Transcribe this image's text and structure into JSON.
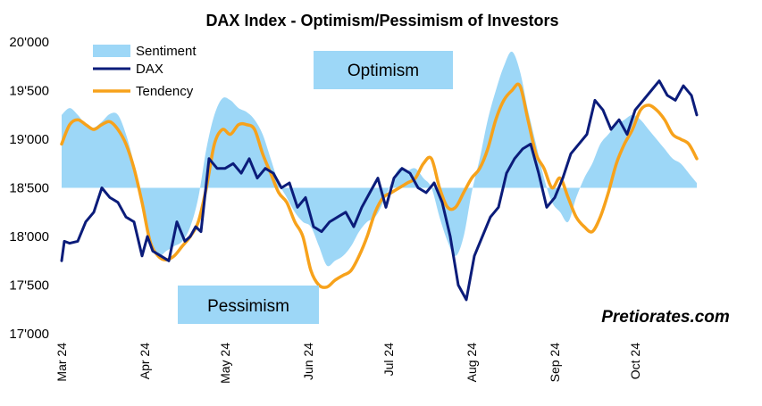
{
  "chart_data": {
    "type": "line",
    "title": "DAX Index - Optimism/Pessimism of Investors",
    "ylim": [
      17000,
      20000
    ],
    "y_ticks": [
      {
        "value": 20000,
        "label": "20'000"
      },
      {
        "value": 19500,
        "label": "19'500"
      },
      {
        "value": 19000,
        "label": "19'000"
      },
      {
        "value": 18500,
        "label": "18'500"
      },
      {
        "value": 18000,
        "label": "18'000"
      },
      {
        "value": 17500,
        "label": "17'500"
      },
      {
        "value": 17000,
        "label": "17'000"
      }
    ],
    "x_ticks": [
      {
        "date": "2024-03-01",
        "label": "Mar 24"
      },
      {
        "date": "2024-04-01",
        "label": "Apr 24"
      },
      {
        "date": "2024-05-01",
        "label": "May 24"
      },
      {
        "date": "2024-06-01",
        "label": "Jun 24"
      },
      {
        "date": "2024-07-01",
        "label": "Jul 24"
      },
      {
        "date": "2024-08-01",
        "label": "Aug 24"
      },
      {
        "date": "2024-09-01",
        "label": "Sep 24"
      },
      {
        "date": "2024-10-01",
        "label": "Oct 24"
      }
    ],
    "xlim": [
      "2024-03-01",
      "2024-10-24"
    ],
    "baseline": 18500,
    "legend": {
      "placement": "top-left",
      "entries": [
        "Sentiment",
        "DAX",
        "Tendency"
      ]
    },
    "annotations": {
      "optimism": "Optimism",
      "pessimism": "Pessimism"
    },
    "watermark": "Pretiorates.com",
    "colors": {
      "sentiment": "#9dd7f7",
      "dax": "#0b1c7a",
      "tendency": "#f7a21b"
    },
    "series": [
      {
        "name": "Sentiment",
        "style": "area",
        "x": [
          "2024-03-01",
          "2024-03-04",
          "2024-03-07",
          "2024-03-10",
          "2024-03-13",
          "2024-03-16",
          "2024-03-19",
          "2024-03-22",
          "2024-03-25",
          "2024-03-28",
          "2024-03-31",
          "2024-04-03",
          "2024-04-06",
          "2024-04-09",
          "2024-04-12",
          "2024-04-15",
          "2024-04-18",
          "2024-04-21",
          "2024-04-24",
          "2024-04-27",
          "2024-04-30",
          "2024-05-03",
          "2024-05-06",
          "2024-05-09",
          "2024-05-12",
          "2024-05-15",
          "2024-05-18",
          "2024-05-21",
          "2024-05-24",
          "2024-05-27",
          "2024-05-30",
          "2024-06-02",
          "2024-06-05",
          "2024-06-08",
          "2024-06-11",
          "2024-06-14",
          "2024-06-17",
          "2024-06-20",
          "2024-06-23",
          "2024-06-26",
          "2024-06-29",
          "2024-07-02",
          "2024-07-05",
          "2024-07-08",
          "2024-07-11",
          "2024-07-14",
          "2024-07-17",
          "2024-07-20",
          "2024-07-23",
          "2024-07-26",
          "2024-07-29",
          "2024-08-01",
          "2024-08-04",
          "2024-08-07",
          "2024-08-10",
          "2024-08-13",
          "2024-08-16",
          "2024-08-19",
          "2024-08-22",
          "2024-08-25",
          "2024-08-28",
          "2024-08-31",
          "2024-09-03",
          "2024-09-06",
          "2024-09-09",
          "2024-09-12",
          "2024-09-15",
          "2024-09-18",
          "2024-09-21",
          "2024-09-24",
          "2024-09-27",
          "2024-09-30",
          "2024-10-03",
          "2024-10-06",
          "2024-10-09",
          "2024-10-12",
          "2024-10-15",
          "2024-10-18",
          "2024-10-21",
          "2024-10-24"
        ],
        "values": [
          19250,
          19320,
          19250,
          19150,
          19120,
          19180,
          19260,
          19250,
          19050,
          18750,
          18400,
          18000,
          17800,
          17850,
          17900,
          17950,
          18100,
          18400,
          18900,
          19250,
          19420,
          19400,
          19320,
          19280,
          19200,
          19050,
          18800,
          18550,
          18400,
          18250,
          18150,
          18100,
          17900,
          17700,
          17750,
          17800,
          17900,
          18050,
          18150,
          18200,
          18350,
          18550,
          18700,
          18680,
          18700,
          18600,
          18500,
          18200,
          17950,
          17800,
          18000,
          18450,
          18800,
          19200,
          19500,
          19750,
          19900,
          19700,
          19300,
          18950,
          18600,
          18350,
          18250,
          18150,
          18400,
          18600,
          18750,
          18950,
          19050,
          19150,
          19200,
          19250,
          19200,
          19100,
          19000,
          18900,
          18800,
          18750,
          18650,
          18550
        ]
      },
      {
        "name": "DAX",
        "style": "line",
        "x": [
          "2024-03-01",
          "2024-03-02",
          "2024-03-04",
          "2024-03-07",
          "2024-03-10",
          "2024-03-13",
          "2024-03-16",
          "2024-03-19",
          "2024-03-22",
          "2024-03-25",
          "2024-03-28",
          "2024-03-31",
          "2024-04-02",
          "2024-04-04",
          "2024-04-07",
          "2024-04-10",
          "2024-04-13",
          "2024-04-16",
          "2024-04-18",
          "2024-04-20",
          "2024-04-22",
          "2024-04-25",
          "2024-04-28",
          "2024-05-01",
          "2024-05-04",
          "2024-05-07",
          "2024-05-10",
          "2024-05-13",
          "2024-05-16",
          "2024-05-19",
          "2024-05-22",
          "2024-05-25",
          "2024-05-28",
          "2024-05-31",
          "2024-06-03",
          "2024-06-06",
          "2024-06-09",
          "2024-06-12",
          "2024-06-15",
          "2024-06-18",
          "2024-06-21",
          "2024-06-24",
          "2024-06-27",
          "2024-06-30",
          "2024-07-03",
          "2024-07-06",
          "2024-07-09",
          "2024-07-12",
          "2024-07-15",
          "2024-07-18",
          "2024-07-21",
          "2024-07-24",
          "2024-07-27",
          "2024-07-30",
          "2024-08-02",
          "2024-08-05",
          "2024-08-08",
          "2024-08-11",
          "2024-08-14",
          "2024-08-17",
          "2024-08-20",
          "2024-08-23",
          "2024-08-26",
          "2024-08-29",
          "2024-09-01",
          "2024-09-04",
          "2024-09-07",
          "2024-09-10",
          "2024-09-13",
          "2024-09-16",
          "2024-09-19",
          "2024-09-22",
          "2024-09-25",
          "2024-09-28",
          "2024-10-01",
          "2024-10-04",
          "2024-10-07",
          "2024-10-10",
          "2024-10-13",
          "2024-10-16",
          "2024-10-19",
          "2024-10-22",
          "2024-10-24"
        ],
        "values": [
          17750,
          17950,
          17930,
          17950,
          18150,
          18250,
          18500,
          18400,
          18350,
          18200,
          18150,
          17800,
          18000,
          17850,
          17800,
          17750,
          18150,
          17950,
          18000,
          18100,
          18050,
          18800,
          18700,
          18700,
          18750,
          18650,
          18800,
          18600,
          18700,
          18650,
          18500,
          18550,
          18300,
          18400,
          18100,
          18050,
          18150,
          18200,
          18250,
          18100,
          18300,
          18450,
          18600,
          18300,
          18600,
          18700,
          18650,
          18500,
          18450,
          18550,
          18350,
          18000,
          17500,
          17350,
          17800,
          18000,
          18200,
          18300,
          18650,
          18800,
          18900,
          18950,
          18650,
          18300,
          18400,
          18600,
          18850,
          18950,
          19050,
          19400,
          19300,
          19100,
          19200,
          19050,
          19300,
          19400,
          19500,
          19600,
          19450,
          19400,
          19550,
          19450,
          19250
        ]
      },
      {
        "name": "Tendency",
        "style": "line",
        "x": [
          "2024-03-01",
          "2024-03-04",
          "2024-03-07",
          "2024-03-10",
          "2024-03-13",
          "2024-03-16",
          "2024-03-19",
          "2024-03-22",
          "2024-03-25",
          "2024-03-28",
          "2024-03-31",
          "2024-04-03",
          "2024-04-06",
          "2024-04-09",
          "2024-04-12",
          "2024-04-15",
          "2024-04-18",
          "2024-04-21",
          "2024-04-24",
          "2024-04-27",
          "2024-04-30",
          "2024-05-03",
          "2024-05-06",
          "2024-05-09",
          "2024-05-12",
          "2024-05-15",
          "2024-05-18",
          "2024-05-21",
          "2024-05-24",
          "2024-05-27",
          "2024-05-30",
          "2024-06-02",
          "2024-06-05",
          "2024-06-08",
          "2024-06-11",
          "2024-06-14",
          "2024-06-17",
          "2024-06-20",
          "2024-06-23",
          "2024-06-26",
          "2024-06-29",
          "2024-07-02",
          "2024-07-05",
          "2024-07-08",
          "2024-07-11",
          "2024-07-14",
          "2024-07-17",
          "2024-07-20",
          "2024-07-23",
          "2024-07-26",
          "2024-07-29",
          "2024-08-01",
          "2024-08-04",
          "2024-08-07",
          "2024-08-10",
          "2024-08-13",
          "2024-08-16",
          "2024-08-19",
          "2024-08-22",
          "2024-08-25",
          "2024-08-28",
          "2024-08-31",
          "2024-09-03",
          "2024-09-06",
          "2024-09-09",
          "2024-09-12",
          "2024-09-15",
          "2024-09-18",
          "2024-09-21",
          "2024-09-24",
          "2024-09-27",
          "2024-09-30",
          "2024-10-03",
          "2024-10-06",
          "2024-10-09",
          "2024-10-12",
          "2024-10-15",
          "2024-10-18",
          "2024-10-21",
          "2024-10-24"
        ],
        "values": [
          18950,
          19150,
          19200,
          19150,
          19100,
          19150,
          19180,
          19100,
          18950,
          18700,
          18350,
          17950,
          17800,
          17760,
          17800,
          17900,
          18000,
          18150,
          18500,
          18950,
          19100,
          19050,
          19150,
          19150,
          19100,
          18850,
          18650,
          18450,
          18350,
          18150,
          18000,
          17650,
          17500,
          17480,
          17550,
          17600,
          17650,
          17800,
          18000,
          18250,
          18400,
          18450,
          18500,
          18550,
          18600,
          18750,
          18800,
          18500,
          18300,
          18300,
          18450,
          18600,
          18700,
          18900,
          19200,
          19400,
          19500,
          19550,
          19200,
          18850,
          18700,
          18500,
          18600,
          18400,
          18200,
          18100,
          18050,
          18200,
          18450,
          18750,
          18950,
          19100,
          19300,
          19350,
          19300,
          19200,
          19050,
          19000,
          18950,
          18800
        ]
      }
    ]
  }
}
